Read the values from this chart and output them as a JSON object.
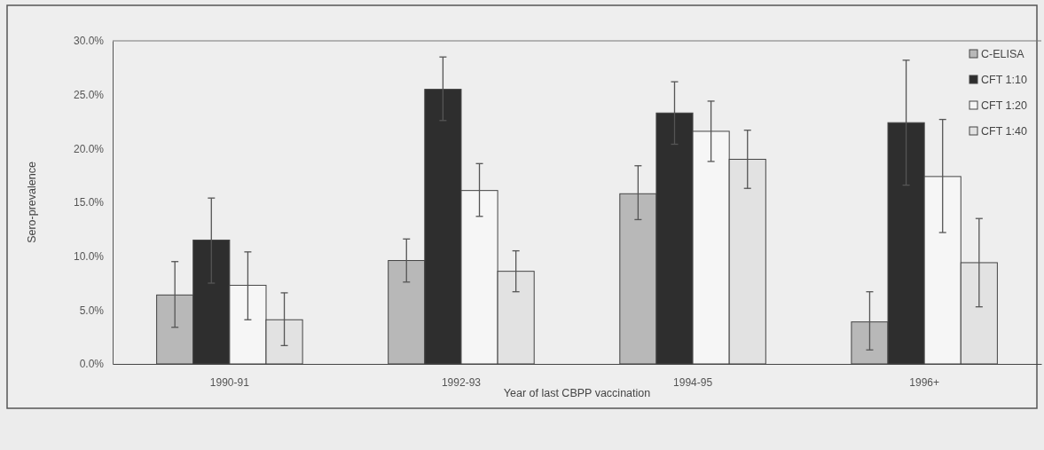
{
  "chart_data": {
    "type": "bar",
    "xlabel": "Year of last CBPP vaccination",
    "ylabel": "Sero-prevalence",
    "categories": [
      "1990-91",
      "1992-93",
      "1994-95",
      "1996+"
    ],
    "series": [
      {
        "name": "C-ELISA",
        "color": "#b8b8b8",
        "values": [
          6.4,
          9.6,
          15.8,
          3.9
        ],
        "errors": [
          [
            3.4,
            9.5
          ],
          [
            7.6,
            11.6
          ],
          [
            13.4,
            18.4
          ],
          [
            1.3,
            6.7
          ]
        ]
      },
      {
        "name": "CFT 1:10",
        "color": "#2e2e2e",
        "values": [
          11.5,
          25.5,
          23.3,
          22.4
        ],
        "errors": [
          [
            7.5,
            15.4
          ],
          [
            22.6,
            28.5
          ],
          [
            20.4,
            26.2
          ],
          [
            16.6,
            28.2
          ]
        ]
      },
      {
        "name": "CFT 1:20",
        "color": "#f6f6f6",
        "values": [
          7.3,
          16.1,
          21.6,
          17.4
        ],
        "errors": [
          [
            4.1,
            10.4
          ],
          [
            13.7,
            18.6
          ],
          [
            18.8,
            24.4
          ],
          [
            12.2,
            22.7
          ]
        ]
      },
      {
        "name": "CFT 1:40",
        "color": "#e2e2e2",
        "values": [
          4.1,
          8.6,
          19.0,
          9.4
        ],
        "errors": [
          [
            1.7,
            6.6
          ],
          [
            6.7,
            10.5
          ],
          [
            16.3,
            21.7
          ],
          [
            5.3,
            13.5
          ]
        ]
      }
    ],
    "ylim": [
      0,
      30
    ],
    "yticks": [
      {
        "value": 0,
        "label": "0.0%"
      },
      {
        "value": 5,
        "label": "5.0%"
      },
      {
        "value": 10,
        "label": "10.0%"
      },
      {
        "value": 15,
        "label": "15.0%"
      },
      {
        "value": 20,
        "label": "20.0%"
      },
      {
        "value": 25,
        "label": "25.0%"
      },
      {
        "value": 30,
        "label": "30.0%"
      }
    ],
    "grid": false,
    "legend": "top right"
  }
}
